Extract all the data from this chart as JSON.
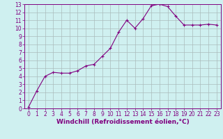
{
  "x": [
    0,
    1,
    2,
    3,
    4,
    5,
    6,
    7,
    8,
    9,
    10,
    11,
    12,
    13,
    14,
    15,
    16,
    17,
    18,
    19,
    20,
    21,
    22,
    23
  ],
  "y": [
    0.2,
    2.2,
    4.0,
    4.5,
    4.4,
    4.4,
    4.7,
    5.3,
    5.5,
    6.5,
    7.5,
    9.5,
    11.0,
    10.0,
    11.2,
    12.8,
    13.0,
    12.7,
    11.5,
    10.4,
    10.4,
    10.4,
    10.5,
    10.4
  ],
  "line_color": "#800080",
  "marker": "+",
  "marker_size": 3,
  "marker_linewidth": 0.8,
  "bg_color": "#cff0f0",
  "grid_color": "#aabbbb",
  "xlabel": "Windchill (Refroidissement éolien,°C)",
  "xlim": [
    -0.5,
    23.5
  ],
  "ylim": [
    0,
    13
  ],
  "yticks": [
    0,
    1,
    2,
    3,
    4,
    5,
    6,
    7,
    8,
    9,
    10,
    11,
    12,
    13
  ],
  "xticks": [
    0,
    1,
    2,
    3,
    4,
    5,
    6,
    7,
    8,
    9,
    10,
    11,
    12,
    13,
    14,
    15,
    16,
    17,
    18,
    19,
    20,
    21,
    22,
    23
  ],
  "tick_color": "#800080",
  "axis_color": "#800080",
  "line_width": 0.8,
  "xlabel_fontsize": 6.5,
  "tick_fontsize": 5.5
}
